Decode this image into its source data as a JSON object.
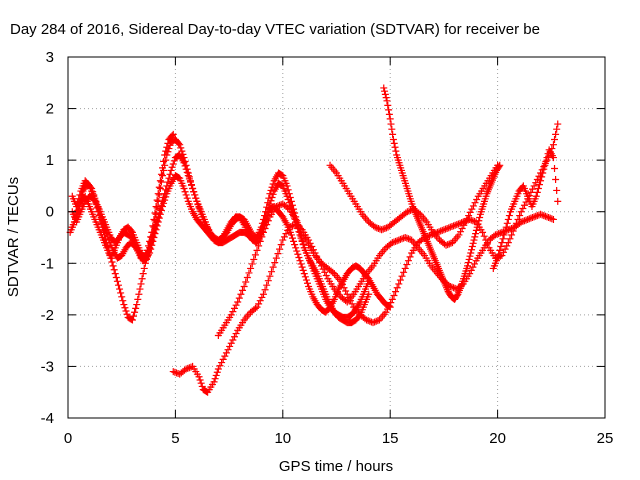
{
  "chart_data": {
    "type": "scatter",
    "title": "Day 284 of 2016, Sidereal Day-to-day VTEC variation (SDTVAR) for receiver be",
    "xlabel": "GPS time / hours",
    "ylabel": "SDTVAR / TECUs",
    "xlim": [
      0,
      25
    ],
    "ylim": [
      -4,
      3
    ],
    "xticks": [
      "0",
      "5",
      "10",
      "15",
      "20",
      "25"
    ],
    "yticks": [
      "-4",
      "-3",
      "-2",
      "-1",
      "0",
      "1",
      "2",
      "3"
    ],
    "grid": true,
    "marker": "+",
    "marker_color": "#ff0000",
    "series": [
      {
        "x": [
          0.2,
          0.4,
          0.6,
          0.8,
          1.0,
          1.2,
          1.4,
          1.6,
          1.8,
          2.0,
          2.2,
          2.4,
          2.6,
          2.8,
          3.0,
          3.2,
          3.4,
          3.6,
          3.8,
          4.0,
          4.2,
          4.4,
          4.6,
          4.8,
          5.0,
          5.2,
          5.4,
          5.6,
          5.8,
          6.0,
          6.2,
          6.4,
          6.6,
          6.8,
          7.0,
          7.2,
          7.4,
          7.6,
          7.8,
          8.0,
          8.2,
          8.4,
          8.6,
          8.8,
          9.0,
          9.2,
          9.4,
          9.6,
          9.8,
          10.0,
          10.2,
          10.4,
          10.6,
          10.8,
          11.0,
          11.2,
          11.4,
          11.6,
          11.8,
          12.0,
          12.2,
          12.4,
          12.6,
          12.8,
          13.0,
          13.2,
          13.4,
          13.6,
          13.8,
          14.0
        ],
        "y": [
          0.3,
          0.1,
          0.4,
          0.6,
          0.5,
          0.3,
          0.0,
          -0.3,
          -0.6,
          -0.9,
          -1.2,
          -1.5,
          -1.8,
          -2.05,
          -2.1,
          -1.8,
          -1.4,
          -1.0,
          -0.7,
          -0.4,
          -0.1,
          0.2,
          0.5,
          0.8,
          1.05,
          1.1,
          0.95,
          0.7,
          0.45,
          0.2,
          0.0,
          -0.2,
          -0.4,
          -0.55,
          -0.6,
          -0.5,
          -0.35,
          -0.2,
          -0.1,
          -0.1,
          -0.25,
          -0.45,
          -0.55,
          -0.5,
          -0.3,
          0.0,
          0.35,
          0.6,
          0.75,
          0.7,
          0.5,
          0.2,
          -0.1,
          -0.4,
          -0.7,
          -0.9,
          -1.05,
          -1.2,
          -1.4,
          -1.6,
          -1.8,
          -1.95,
          -2.05,
          -2.1,
          -2.15,
          -2.15,
          -2.1,
          -2.0,
          -1.8,
          -1.6
        ]
      },
      {
        "x": [
          0.2,
          0.4,
          0.6,
          0.8,
          1.0,
          1.2,
          1.4,
          1.6,
          1.8,
          2.0,
          2.2,
          2.4,
          2.6,
          2.8,
          3.0,
          3.2,
          3.4,
          3.6,
          3.8,
          4.0,
          4.2,
          4.4,
          4.6,
          4.8,
          5.0,
          5.2,
          5.4,
          5.6,
          5.8,
          6.0,
          6.2,
          6.4,
          6.6,
          6.8,
          7.0,
          7.2,
          7.4,
          7.6,
          7.8,
          8.0,
          8.2,
          8.4,
          8.6,
          8.8,
          9.0,
          9.2,
          9.4,
          9.6,
          9.8,
          10.0,
          10.2,
          10.4,
          10.6,
          10.8,
          11.0,
          11.2,
          11.4,
          11.6,
          11.8,
          12.0,
          12.2,
          12.4,
          12.6,
          12.8,
          13.0,
          13.2,
          13.4,
          13.6,
          13.8,
          14.0,
          14.2,
          14.4,
          14.6,
          14.8,
          15.0
        ],
        "y": [
          -0.3,
          -0.1,
          0.2,
          0.3,
          0.1,
          -0.1,
          -0.3,
          -0.5,
          -0.7,
          -0.9,
          -0.7,
          -0.5,
          -0.4,
          -0.45,
          -0.5,
          -0.7,
          -0.9,
          -0.95,
          -0.8,
          -0.5,
          -0.2,
          0.1,
          0.35,
          0.55,
          0.7,
          0.65,
          0.45,
          0.2,
          0.0,
          -0.15,
          -0.25,
          -0.35,
          -0.45,
          -0.55,
          -0.6,
          -0.6,
          -0.55,
          -0.5,
          -0.45,
          -0.4,
          -0.4,
          -0.45,
          -0.55,
          -0.6,
          -0.45,
          -0.2,
          0.05,
          0.1,
          0.0,
          -0.1,
          -0.25,
          -0.45,
          -0.7,
          -0.95,
          -1.2,
          -1.45,
          -1.65,
          -1.8,
          -1.9,
          -1.95,
          -1.85,
          -1.7,
          -1.5,
          -1.35,
          -1.2,
          -1.1,
          -1.05,
          -1.1,
          -1.2,
          -1.3,
          -1.45,
          -1.6,
          -1.7,
          -1.8,
          -1.85
        ]
      },
      {
        "x": [
          0.2,
          0.4,
          0.6,
          0.8,
          1.0,
          1.2,
          1.4,
          1.6,
          1.8,
          2.0,
          2.2,
          2.4,
          2.6,
          2.8,
          3.0,
          3.2,
          3.4,
          3.6,
          3.8,
          4.0,
          4.2,
          4.4,
          4.6,
          4.8,
          5.0,
          5.2,
          5.4,
          5.6,
          5.8,
          6.0,
          6.2,
          6.4,
          6.6,
          6.8,
          7.0,
          7.2,
          7.4,
          7.6,
          7.8,
          8.0,
          8.2,
          8.4,
          8.6,
          8.8,
          9.0,
          9.2,
          9.4,
          9.6,
          9.8,
          10.0,
          10.2,
          10.4,
          10.6,
          10.8,
          11.0,
          11.2,
          11.4,
          11.6,
          11.8,
          12.0,
          12.2,
          12.4,
          12.6,
          12.8,
          13.0,
          13.2,
          13.4,
          13.6,
          13.8,
          14.0
        ],
        "y": [
          0.0,
          -0.2,
          0.0,
          0.2,
          0.3,
          0.25,
          0.1,
          -0.1,
          -0.3,
          -0.5,
          -0.6,
          -0.5,
          -0.35,
          -0.3,
          -0.4,
          -0.6,
          -0.8,
          -0.9,
          -0.7,
          -0.3,
          0.2,
          0.7,
          1.1,
          1.35,
          1.4,
          1.3,
          1.05,
          0.75,
          0.45,
          0.2,
          -0.05,
          -0.25,
          -0.4,
          -0.5,
          -0.55,
          -0.5,
          -0.4,
          -0.25,
          -0.15,
          -0.1,
          -0.15,
          -0.3,
          -0.45,
          -0.5,
          -0.4,
          -0.15,
          0.15,
          0.4,
          0.55,
          0.5,
          0.3,
          0.05,
          -0.2,
          -0.45,
          -0.7,
          -0.9,
          -1.1,
          -1.3,
          -1.5,
          -1.7,
          -1.85,
          -1.95,
          -2.0,
          -2.05,
          -2.05,
          -2.0,
          -1.9,
          -1.75,
          -1.55,
          -1.35
        ]
      },
      {
        "x": [
          0.1,
          0.3,
          0.5,
          0.7,
          0.9,
          1.1,
          1.3,
          1.5,
          1.7,
          1.9,
          2.1,
          2.3,
          2.5,
          2.7,
          2.9,
          3.1,
          3.3,
          3.5,
          3.7,
          3.9,
          4.1,
          4.3,
          4.5,
          4.7,
          4.9
        ],
        "y": [
          -0.4,
          -0.2,
          0.1,
          0.4,
          0.55,
          0.45,
          0.2,
          -0.05,
          -0.3,
          -0.55,
          -0.75,
          -0.9,
          -0.85,
          -0.7,
          -0.6,
          -0.65,
          -0.8,
          -0.95,
          -0.75,
          -0.4,
          0.1,
          0.6,
          1.1,
          1.4,
          1.5
        ]
      },
      {
        "x": [
          4.9,
          5.2,
          5.5,
          5.8,
          6.1,
          6.3,
          6.5,
          6.8,
          7.0,
          7.3,
          7.6,
          7.9,
          8.2,
          8.5,
          8.8,
          9.1,
          9.4,
          9.7,
          10.0,
          10.3,
          10.6,
          10.9,
          11.2,
          11.5,
          11.8,
          12.1,
          12.4,
          12.7,
          13.0,
          13.3,
          13.6,
          13.9,
          14.2,
          14.5,
          14.8,
          15.1,
          15.4,
          15.7,
          16.0,
          16.3,
          16.6,
          16.9,
          17.2,
          17.5,
          17.8,
          18.1,
          18.4,
          18.7,
          19.0,
          19.3,
          19.6,
          19.9,
          20.2,
          20.5,
          20.8,
          21.1,
          21.4,
          21.7,
          22.0,
          22.3,
          22.6
        ],
        "y": [
          -3.1,
          -3.15,
          -3.05,
          -3.0,
          -3.2,
          -3.45,
          -3.5,
          -3.3,
          -3.05,
          -2.8,
          -2.55,
          -2.3,
          -2.1,
          -1.95,
          -1.85,
          -1.6,
          -1.25,
          -0.9,
          -0.55,
          -0.3,
          -0.25,
          -0.35,
          -0.55,
          -0.8,
          -1.05,
          -1.3,
          -1.5,
          -1.65,
          -1.75,
          -1.6,
          -1.4,
          -1.2,
          -1.05,
          -0.85,
          -0.7,
          -0.6,
          -0.55,
          -0.5,
          -0.55,
          -0.7,
          -0.85,
          -1.05,
          -1.2,
          -1.35,
          -1.45,
          -1.5,
          -1.4,
          -1.2,
          -0.95,
          -0.75,
          -0.55,
          -0.45,
          -0.4,
          -0.35,
          -0.3,
          -0.2,
          -0.15,
          -0.1,
          -0.05,
          -0.1,
          -0.15
        ]
      },
      {
        "x": [
          7.0,
          7.3,
          7.6,
          7.9,
          8.2,
          8.5,
          8.8,
          9.1,
          9.4,
          9.7,
          10.0,
          10.3,
          10.6,
          10.9,
          11.2,
          11.5,
          11.8,
          12.1,
          12.4,
          12.7,
          13.0,
          13.3,
          13.6,
          13.9,
          14.2,
          14.5,
          14.8,
          15.1,
          15.4,
          15.7,
          16.0,
          16.3,
          16.6,
          16.9,
          17.2,
          17.5,
          17.8,
          18.1,
          18.4,
          18.7,
          19.0,
          19.3,
          19.6,
          19.9,
          20.2,
          20.5,
          20.8,
          21.1,
          21.4,
          21.7,
          22.0,
          22.3,
          22.6,
          22.8
        ],
        "y": [
          -2.4,
          -2.2,
          -2.0,
          -1.75,
          -1.45,
          -1.1,
          -0.75,
          -0.4,
          -0.1,
          0.1,
          0.15,
          0.05,
          -0.15,
          -0.4,
          -0.65,
          -0.85,
          -1.0,
          -1.1,
          -1.2,
          -1.35,
          -1.6,
          -1.85,
          -2.0,
          -2.1,
          -2.15,
          -2.1,
          -1.95,
          -1.7,
          -1.4,
          -1.1,
          -0.8,
          -0.6,
          -0.5,
          -0.45,
          -0.4,
          -0.35,
          -0.3,
          -0.25,
          -0.2,
          -0.15,
          -0.2,
          -0.4,
          -0.7,
          -0.9,
          -0.85,
          -0.6,
          -0.3,
          0.0,
          0.25,
          0.5,
          0.75,
          1.0,
          1.3,
          1.7
        ]
      },
      {
        "x": [
          12.2,
          12.5,
          12.8,
          13.1,
          13.4,
          13.7,
          14.0,
          14.3,
          14.6,
          14.9,
          15.2,
          15.5,
          15.8,
          16.1,
          16.4,
          16.7,
          17.0,
          17.3,
          17.6,
          17.9,
          18.2,
          18.5,
          18.8,
          19.1,
          19.4,
          19.7,
          20.0
        ],
        "y": [
          0.9,
          0.75,
          0.55,
          0.35,
          0.15,
          -0.05,
          -0.2,
          -0.3,
          -0.35,
          -0.3,
          -0.2,
          -0.1,
          0.0,
          0.05,
          -0.05,
          -0.2,
          -0.4,
          -0.55,
          -0.65,
          -0.6,
          -0.45,
          -0.2,
          0.05,
          0.3,
          0.5,
          0.7,
          0.9
        ]
      },
      {
        "x": [
          14.7,
          14.85,
          15.0,
          15.15,
          15.3,
          15.45,
          15.6,
          15.75,
          15.9,
          16.05,
          16.2,
          16.35,
          16.5,
          16.65,
          16.8,
          16.95,
          17.1,
          17.25,
          17.4,
          17.55,
          17.7,
          17.85,
          18.0,
          18.15,
          18.3,
          18.45,
          18.6,
          18.75,
          18.9,
          19.05,
          19.2,
          19.35,
          19.5,
          19.65,
          19.8,
          19.95,
          20.1
        ],
        "y": [
          2.4,
          2.15,
          1.8,
          1.4,
          1.1,
          0.9,
          0.7,
          0.5,
          0.3,
          0.1,
          -0.05,
          -0.2,
          -0.35,
          -0.5,
          -0.65,
          -0.8,
          -0.95,
          -1.1,
          -1.25,
          -1.4,
          -1.55,
          -1.65,
          -1.7,
          -1.6,
          -1.45,
          -1.25,
          -1.05,
          -0.8,
          -0.55,
          -0.3,
          -0.05,
          0.15,
          0.35,
          0.5,
          0.65,
          0.8,
          0.9
        ]
      },
      {
        "x": [
          19.8,
          20.0,
          20.2,
          20.4,
          20.6,
          20.8,
          21.0,
          21.2,
          21.4,
          21.6,
          21.8,
          22.0,
          22.2,
          22.4,
          22.6,
          22.8
        ],
        "y": [
          -1.1,
          -0.9,
          -0.6,
          -0.3,
          0.0,
          0.2,
          0.4,
          0.5,
          0.3,
          0.1,
          0.3,
          0.6,
          0.9,
          1.2,
          1.05,
          0.2
        ]
      }
    ]
  }
}
